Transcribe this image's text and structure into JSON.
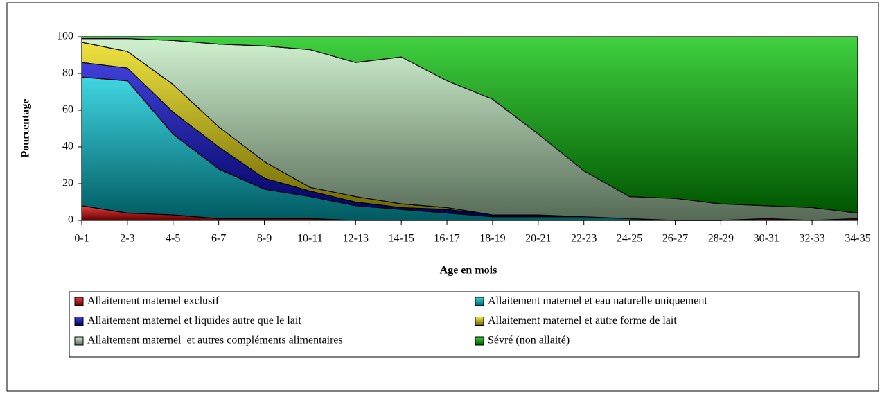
{
  "chart_data": {
    "type": "stacked_area",
    "x_label": "Age en mois",
    "y_label": "Pourcentage",
    "categories": [
      "0-1",
      "2-3",
      "4-5",
      "6-7",
      "8-9",
      "10-11",
      "12-13",
      "14-15",
      "16-17",
      "18-19",
      "20-21",
      "22-23",
      "24-25",
      "26-27",
      "28-29",
      "30-31",
      "32-33",
      "34-35"
    ],
    "series": [
      {
        "name": "Allaitement maternel exclusif",
        "color": "#e00000",
        "values": [
          8,
          4,
          3,
          1,
          1,
          1,
          0,
          0,
          0,
          0,
          0,
          0,
          0,
          0,
          0,
          1,
          0,
          1
        ]
      },
      {
        "name": "Allaitement maternel et eau naturelle uniquement",
        "color": "#00c8d8",
        "values": [
          70,
          72,
          44,
          27,
          16,
          12,
          8,
          6,
          4,
          2,
          2,
          2,
          1,
          0,
          0,
          0,
          0,
          0
        ]
      },
      {
        "name": "Allaitement maternel et liquides autre que le lait",
        "color": "#0000cc",
        "values": [
          8,
          7,
          12,
          12,
          6,
          3,
          2,
          1,
          2,
          1,
          1,
          0,
          0,
          0,
          0,
          0,
          0,
          0
        ]
      },
      {
        "name": "Allaitement maternel et autre forme de lait",
        "color": "#e8d800",
        "values": [
          11,
          9,
          15,
          11,
          9,
          2,
          3,
          2,
          1,
          0,
          0,
          0,
          0,
          0,
          0,
          0,
          0,
          0
        ]
      },
      {
        "name": "Allaitement maternel  et autres compléments alimentaires",
        "color": "#c0ecc0",
        "values": [
          2,
          7,
          24,
          45,
          63,
          75,
          73,
          80,
          69,
          63,
          44,
          25,
          12,
          12,
          9,
          7,
          7,
          3
        ]
      },
      {
        "name": "Sévré (non allaité)",
        "color": "#00c000",
        "values": [
          1,
          1,
          2,
          4,
          5,
          7,
          14,
          11,
          24,
          34,
          53,
          73,
          87,
          88,
          91,
          92,
          93,
          96
        ]
      }
    ],
    "ylim": [
      0,
      100
    ],
    "yticks": [
      0,
      20,
      40,
      60,
      80,
      100
    ]
  }
}
